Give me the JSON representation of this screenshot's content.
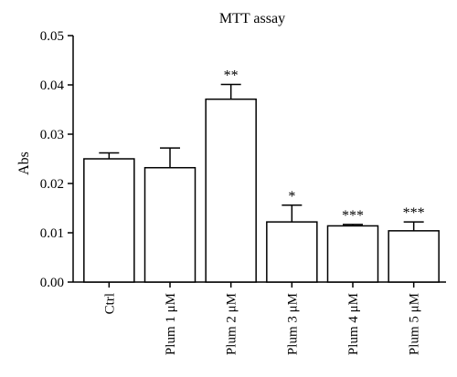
{
  "chart_data": {
    "type": "bar",
    "title": "MTT assay",
    "ylabel": "Abs",
    "xlabel": "",
    "ylim": [
      0,
      0.05
    ],
    "yticks": [
      "0.00",
      "0.01",
      "0.02",
      "0.03",
      "0.04",
      "0.05"
    ],
    "categories": [
      "Ctrl",
      "Plum 1 μM",
      "Plum 2 μM",
      "Plum 3 μM",
      "Plum 4 μM",
      "Plum 5 μM"
    ],
    "values": [
      0.025,
      0.0232,
      0.0371,
      0.0122,
      0.0114,
      0.0104
    ],
    "errors": [
      0.0012,
      0.004,
      0.003,
      0.0034,
      0.0003,
      0.0018
    ],
    "significance": [
      "",
      "",
      "**",
      "*",
      "***",
      "***"
    ],
    "grid": false,
    "legend": "none"
  }
}
